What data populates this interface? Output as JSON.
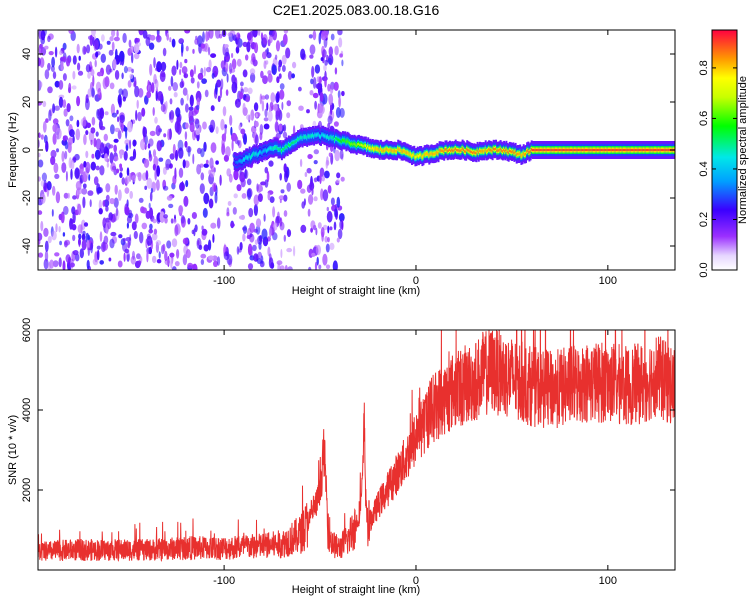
{
  "title": "C2E1.2025.083.00.18.G16",
  "colors": {
    "snr_line": "#e8302e",
    "background": "#ffffff",
    "noise": "#8a2be2"
  },
  "chart_data": [
    {
      "type": "heatmap",
      "title": "C2E1.2025.083.00.18.G16",
      "xlabel": "Height of straight line (km)",
      "ylabel": "Frequency (Hz)",
      "xlim": [
        -197,
        135
      ],
      "ylim": [
        -50,
        50
      ],
      "xticks": [
        -100,
        0,
        100
      ],
      "yticks": [
        -40,
        -20,
        0,
        20,
        40
      ],
      "grid": false,
      "colorbar": {
        "label": "Normalized spectral amplitude",
        "range": [
          0.0,
          0.95
        ],
        "ticks": [
          0.0,
          0.2,
          0.4,
          0.6,
          0.8
        ],
        "colormap": "rainbow (violet to red)"
      },
      "frequency_trace": {
        "x": [
          -95,
          -90,
          -85,
          -80,
          -75,
          -70,
          -65,
          -60,
          -55,
          -50,
          -45,
          -40,
          -35,
          -30,
          -25,
          -20,
          -15,
          -10,
          -5,
          0,
          5,
          10,
          15,
          20,
          25,
          30,
          35,
          40,
          45,
          50,
          55,
          60,
          70,
          80,
          90,
          100,
          110,
          120,
          135
        ],
        "y": [
          -5,
          -4,
          -2,
          -1,
          1,
          0,
          3,
          5,
          6,
          6,
          5,
          4,
          3,
          2,
          1,
          0,
          0,
          0,
          -1,
          -3,
          -2,
          -1,
          0,
          0,
          0,
          -1,
          0,
          0,
          0,
          -1,
          -2,
          0,
          0,
          0,
          0,
          0,
          0,
          0,
          0
        ],
        "amplitude": [
          0.3,
          0.45,
          0.5,
          0.4,
          0.5,
          0.55,
          0.55,
          0.5,
          0.5,
          0.45,
          0.5,
          0.6,
          0.65,
          0.7,
          0.8,
          0.85,
          0.85,
          0.85,
          0.85,
          0.8,
          0.85,
          0.85,
          0.9,
          0.9,
          0.9,
          0.9,
          0.85,
          0.9,
          0.9,
          0.9,
          0.85,
          0.95,
          0.95,
          0.95,
          0.95,
          0.95,
          0.95,
          0.95,
          0.95
        ]
      },
      "noise_region_x": [
        -197,
        -38
      ]
    },
    {
      "type": "line",
      "xlabel": "Height of straight line (km)",
      "ylabel": "SNR (10 * v/v)",
      "xlim": [
        -197,
        135
      ],
      "ylim": [
        0,
        6000
      ],
      "xticks": [
        -100,
        0,
        100
      ],
      "yticks": [
        2000,
        4000,
        6000
      ],
      "grid": false,
      "series": [
        {
          "x": [
            -197,
            -180,
            -160,
            -140,
            -120,
            -100,
            -80,
            -70,
            -60,
            -55,
            -50,
            -48,
            -47,
            -46,
            -45,
            -44,
            -42,
            -40,
            -35,
            -30,
            -28,
            -27,
            -26,
            -25,
            -20,
            -15,
            -10,
            -5,
            0,
            2,
            3,
            5,
            10,
            15,
            20,
            25,
            30,
            35,
            40,
            45,
            50,
            55,
            60,
            70,
            80,
            90,
            100,
            110,
            120,
            125,
            130,
            135
          ],
          "y": [
            450,
            500,
            500,
            500,
            550,
            550,
            600,
            650,
            900,
            1300,
            1900,
            3000,
            2300,
            1200,
            900,
            700,
            600,
            550,
            800,
            1300,
            2000,
            3600,
            1500,
            1100,
            1600,
            2000,
            2400,
            2800,
            3300,
            3800,
            3400,
            3800,
            4100,
            4300,
            4500,
            4600,
            4700,
            4900,
            5000,
            4900,
            4800,
            4700,
            4600,
            4500,
            4600,
            4700,
            4700,
            4600,
            4700,
            4900,
            4700,
            4600
          ]
        }
      ]
    }
  ]
}
